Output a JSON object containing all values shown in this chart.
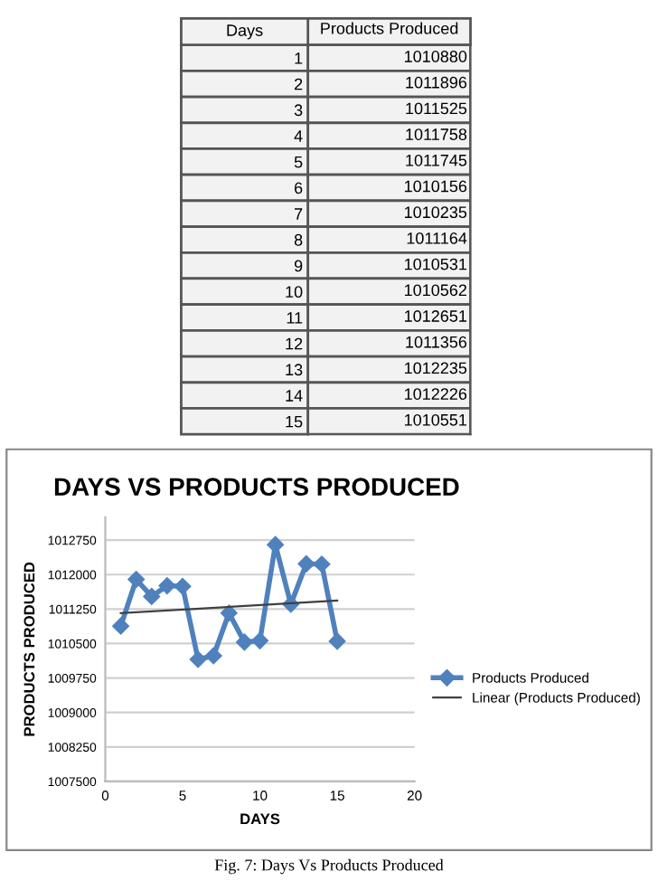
{
  "chart_data": [
    {
      "type": "heatmap",
      "ylabel": "Days",
      "categories": [
        "Products Produced"
      ],
      "color": "#f2f2f2",
      "data_labels": true,
      "y_categories": [
        "1",
        "2",
        "3",
        "4",
        "5",
        "6",
        "7",
        "8",
        "9",
        "10",
        "11",
        "12",
        "13",
        "14",
        "15"
      ],
      "cells": [
        [
          1010880
        ],
        [
          1011896
        ],
        [
          1011525
        ],
        [
          1011758
        ],
        [
          1011745
        ],
        [
          1010156
        ],
        [
          1010235
        ],
        [
          1011164
        ],
        [
          1010531
        ],
        [
          1010562
        ],
        [
          1012651
        ],
        [
          1011356
        ],
        [
          1012235
        ],
        [
          1012226
        ],
        [
          1010551
        ]
      ]
    },
    {
      "type": "line",
      "title": "DAYS VS PRODUCTS PRODUCED",
      "xlabel": "DAYS",
      "ylabel": "PRODUCTS PRODUCED",
      "annotations": [
        "Fig. 7: Days Vs Products Produced"
      ],
      "x": [
        1,
        2,
        3,
        4,
        5,
        6,
        7,
        8,
        9,
        10,
        11,
        12,
        13,
        14,
        15
      ],
      "series": [
        {
          "name": "Products Produced",
          "color": "#4f81bd",
          "marker": "diamond",
          "values": [
            1010880,
            1011896,
            1011525,
            1011758,
            1011745,
            1010156,
            1010235,
            1011164,
            1010531,
            1010562,
            1012651,
            1011356,
            1012235,
            1012226,
            1010551
          ]
        },
        {
          "name": "Linear (Products Produced)",
          "color": "#404040",
          "marker": "none",
          "x": [
            1,
            15
          ],
          "values": [
            1011162,
            1011434
          ]
        }
      ],
      "xlim": [
        0,
        20
      ],
      "xticks": [
        0,
        5,
        10,
        15,
        20
      ],
      "ylim": [
        1007500,
        1013250
      ],
      "yticks": [
        1007500,
        1008250,
        1009000,
        1009750,
        1010500,
        1011250,
        1012000,
        1012750
      ],
      "grid": "y",
      "legend": "right"
    }
  ]
}
